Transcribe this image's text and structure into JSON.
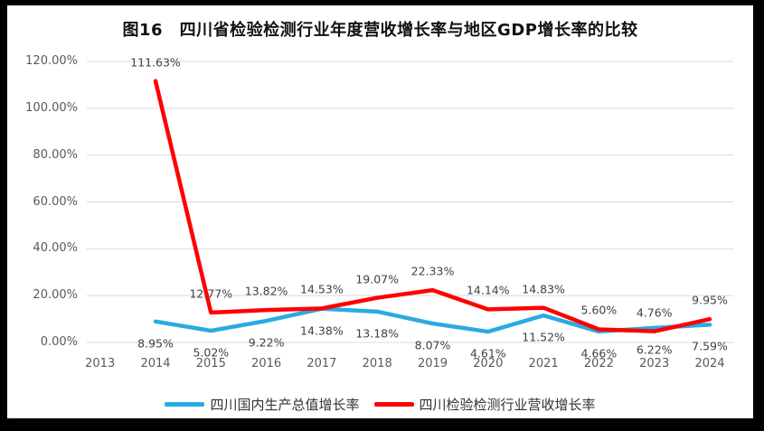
{
  "frame": {
    "outer_background": "#000000",
    "canvas_background": "#FFFFFF"
  },
  "chart_data": {
    "type": "line",
    "title": "图16　四川省检验检测行业年度营收增长率与地区GDP增长率的比较",
    "categories": [
      "2013",
      "2014",
      "2015",
      "2016",
      "2017",
      "2018",
      "2019",
      "2020",
      "2021",
      "2022",
      "2023",
      "2024"
    ],
    "series": [
      {
        "name": "四川国内生产总值增长率",
        "color": "#29ABE2",
        "label_position": "below",
        "values": [
          null,
          8.95,
          5.02,
          9.22,
          14.38,
          13.18,
          8.07,
          4.61,
          11.52,
          4.66,
          6.22,
          7.59
        ],
        "labels": [
          "",
          "8.95%",
          "5.02%",
          "9.22%",
          "14.38%",
          "13.18%",
          "8.07%",
          "4.61%",
          "11.52%",
          "4.66%",
          "6.22%",
          "7.59%"
        ]
      },
      {
        "name": "四川检验检测行业营收增长率",
        "color": "#FF0000",
        "label_position": "above",
        "values": [
          null,
          111.63,
          12.77,
          13.82,
          14.53,
          19.07,
          22.33,
          14.14,
          14.83,
          5.6,
          4.76,
          9.95
        ],
        "labels": [
          "",
          "111.63%",
          "12.77%",
          "13.82%",
          "14.53%",
          "19.07%",
          "22.33%",
          "14.14%",
          "14.83%",
          "5.60%",
          "4.76%",
          "9.95%"
        ]
      }
    ],
    "y_ticks": [
      "120.00%",
      "100.00%",
      "80.00%",
      "60.00%",
      "40.00%",
      "20.00%",
      "0.00%"
    ],
    "ylim": [
      0,
      120
    ],
    "y_step": 20,
    "grid": "horizontal",
    "gridline_color": "#D9D9D9",
    "axis_label_color": "#595959",
    "data_label_color": "#404040",
    "legend_position": "bottom"
  }
}
